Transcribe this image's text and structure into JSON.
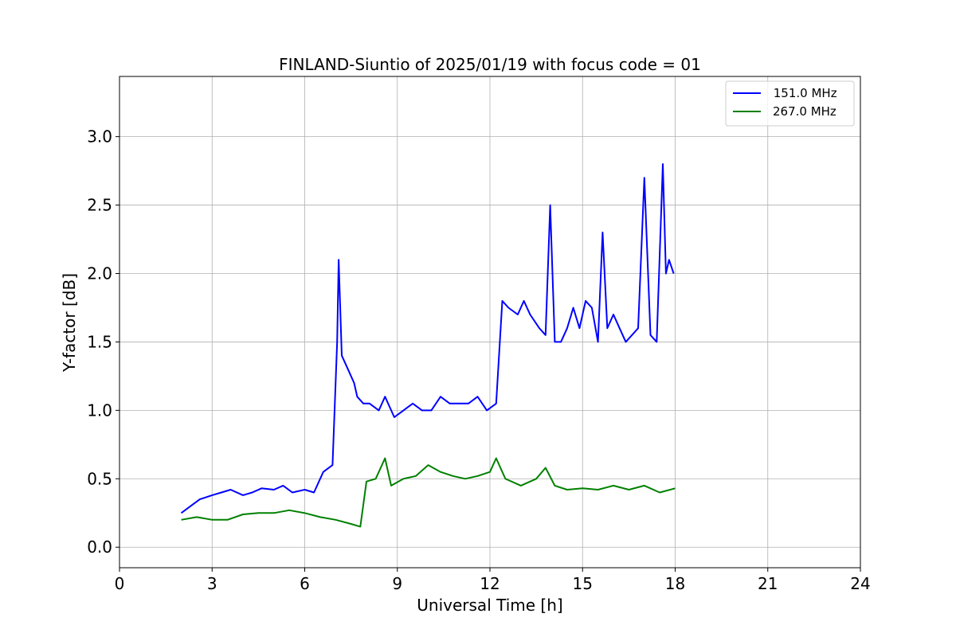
{
  "chart_data": {
    "type": "line",
    "title": "FINLAND-Siuntio of 2025/01/19 with focus code = 01",
    "xlabel": "Universal Time [h]",
    "ylabel": "Y-factor [dB]",
    "xlim": [
      0,
      24
    ],
    "ylim": [
      -0.15,
      3.44
    ],
    "xticks": [
      0,
      3,
      6,
      9,
      12,
      15,
      18,
      21,
      24
    ],
    "xtick_labels": [
      "0",
      "3",
      "6",
      "9",
      "12",
      "15",
      "18",
      "21",
      "24"
    ],
    "yticks": [
      0.0,
      0.5,
      1.0,
      1.5,
      2.0,
      2.5,
      3.0
    ],
    "ytick_labels": [
      "0.0",
      "0.5",
      "1.0",
      "1.5",
      "2.0",
      "2.5",
      "3.0"
    ],
    "grid": true,
    "legend_position": "top-right",
    "series": [
      {
        "name": " 151.0 MHz",
        "color": "#0000ff",
        "x": [
          2.0,
          2.3,
          2.6,
          3.0,
          3.3,
          3.6,
          4.0,
          4.3,
          4.6,
          5.0,
          5.3,
          5.6,
          6.0,
          6.3,
          6.6,
          6.9,
          7.05,
          7.1,
          7.2,
          7.4,
          7.6,
          7.7,
          7.9,
          8.1,
          8.4,
          8.6,
          8.9,
          9.2,
          9.5,
          9.8,
          10.1,
          10.4,
          10.7,
          11.0,
          11.3,
          11.6,
          11.9,
          12.2,
          12.4,
          12.6,
          12.9,
          13.1,
          13.3,
          13.6,
          13.8,
          13.95,
          14.1,
          14.3,
          14.5,
          14.7,
          14.9,
          15.1,
          15.3,
          15.5,
          15.65,
          15.8,
          16.0,
          16.2,
          16.4,
          16.6,
          16.8,
          17.0,
          17.2,
          17.4,
          17.6,
          17.7,
          17.8,
          17.95
        ],
        "values": [
          0.25,
          0.3,
          0.35,
          0.38,
          0.4,
          0.42,
          0.38,
          0.4,
          0.43,
          0.42,
          0.45,
          0.4,
          0.42,
          0.4,
          0.55,
          0.6,
          1.5,
          2.1,
          1.4,
          1.3,
          1.2,
          1.1,
          1.05,
          1.05,
          1.0,
          1.1,
          0.95,
          1.0,
          1.05,
          1.0,
          1.0,
          1.1,
          1.05,
          1.05,
          1.05,
          1.1,
          1.0,
          1.05,
          1.8,
          1.75,
          1.7,
          1.8,
          1.7,
          1.6,
          1.55,
          2.5,
          1.5,
          1.5,
          1.6,
          1.75,
          1.6,
          1.8,
          1.75,
          1.5,
          2.3,
          1.6,
          1.7,
          1.6,
          1.5,
          1.55,
          1.6,
          2.7,
          1.55,
          1.5,
          2.8,
          2.0,
          2.1,
          2.0
        ]
      },
      {
        "name": "267.0 MHz",
        "color": "#008000",
        "x": [
          2.0,
          2.5,
          3.0,
          3.5,
          4.0,
          4.5,
          5.0,
          5.5,
          6.0,
          6.5,
          7.0,
          7.5,
          7.8,
          8.0,
          8.3,
          8.6,
          8.8,
          9.2,
          9.6,
          10.0,
          10.4,
          10.8,
          11.2,
          11.6,
          12.0,
          12.2,
          12.5,
          13.0,
          13.5,
          13.8,
          14.1,
          14.5,
          15.0,
          15.5,
          16.0,
          16.5,
          17.0,
          17.5,
          18.0
        ],
        "values": [
          0.2,
          0.22,
          0.2,
          0.2,
          0.24,
          0.25,
          0.25,
          0.27,
          0.25,
          0.22,
          0.2,
          0.17,
          0.15,
          0.48,
          0.5,
          0.65,
          0.45,
          0.5,
          0.52,
          0.6,
          0.55,
          0.52,
          0.5,
          0.52,
          0.55,
          0.65,
          0.5,
          0.45,
          0.5,
          0.58,
          0.45,
          0.42,
          0.43,
          0.42,
          0.45,
          0.42,
          0.45,
          0.4,
          0.43
        ]
      }
    ]
  }
}
